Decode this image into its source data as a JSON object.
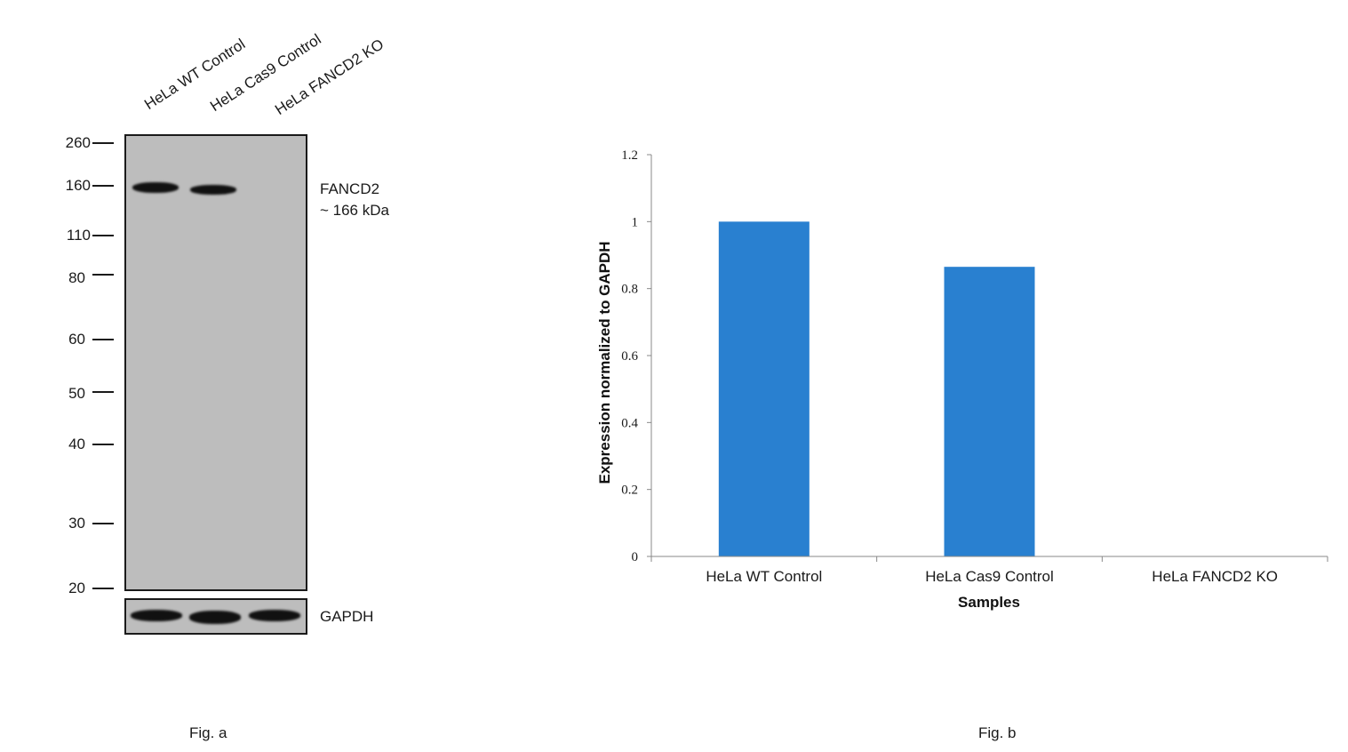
{
  "figure_a": {
    "lanes": [
      "HeLa WT Control",
      "HeLa Cas9 Control",
      "HeLa FANCD2 KO"
    ],
    "mw_markers": [
      "260",
      "160",
      "110",
      "80",
      "60",
      "50",
      "40",
      "30",
      "20"
    ],
    "target_name": "FANCD2",
    "target_size": "~ 166 kDa",
    "loading_control": "GAPDH",
    "caption": "Fig. a"
  },
  "figure_b": {
    "caption": "Fig. b"
  },
  "chart_data": {
    "type": "bar",
    "categories": [
      "HeLa WT Control",
      "HeLa Cas9 Control",
      "HeLa FANCD2 KO"
    ],
    "values": [
      1.0,
      0.865,
      0.0
    ],
    "title": "",
    "xlabel": "Samples",
    "ylabel": "Expression  normalized to GAPDH",
    "ylim": [
      0,
      1.2
    ],
    "yticks": [
      "0",
      "0.2",
      "0.4",
      "0.6",
      "0.8",
      "1",
      "1.2"
    ],
    "ytick_values": [
      0,
      0.2,
      0.4,
      0.6,
      0.8,
      1.0,
      1.2
    ],
    "bar_color": "#2980d0",
    "grid": false,
    "legend": "none"
  }
}
